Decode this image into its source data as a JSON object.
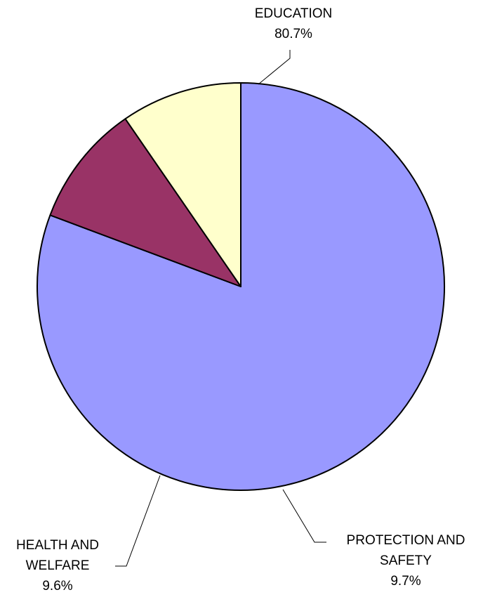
{
  "chart_data": {
    "type": "pie",
    "title": "",
    "start": "12 o'clock",
    "direction": "clockwise",
    "slices": [
      {
        "label_lines": [
          "EDUCATION"
        ],
        "value": 80.7,
        "value_label": "80.7%",
        "color": "#9999ff"
      },
      {
        "label_lines": [
          "PROTECTION AND",
          "SAFETY"
        ],
        "value": 9.7,
        "value_label": "9.7%",
        "color": "#993366"
      },
      {
        "label_lines": [
          "HEALTH AND",
          "WELFARE"
        ],
        "value": 9.6,
        "value_label": "9.6%",
        "color": "#ffffcc"
      }
    ]
  }
}
